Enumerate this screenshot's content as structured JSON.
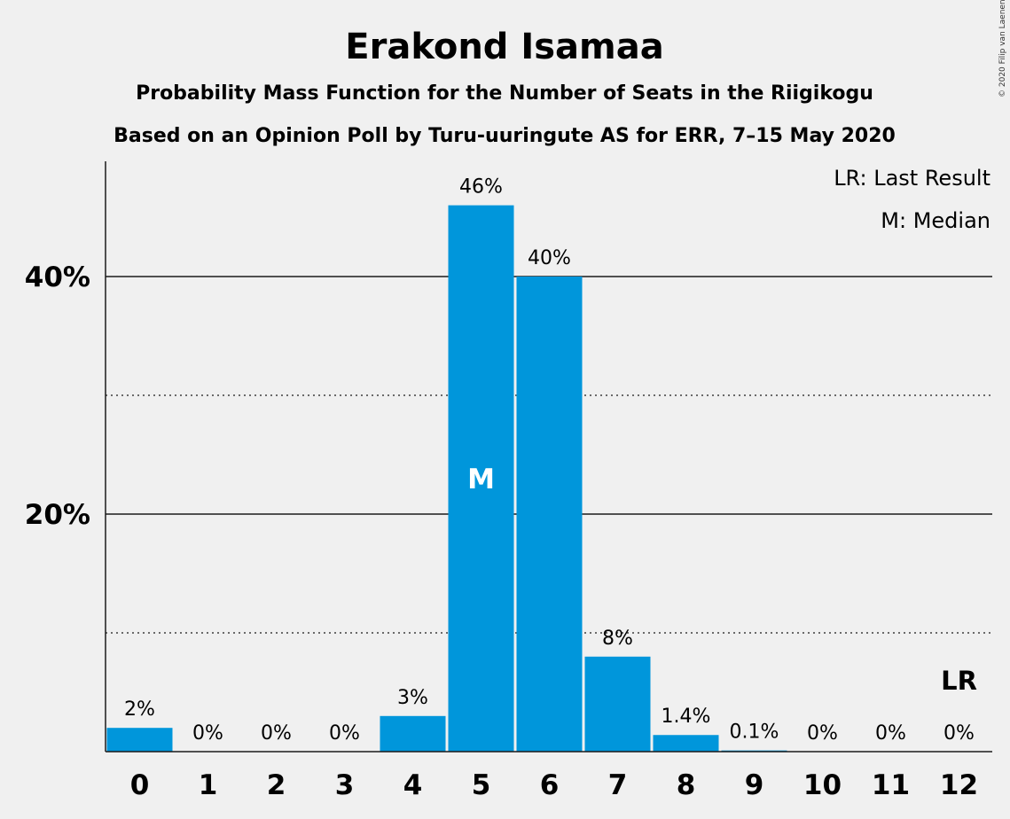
{
  "title": "Erakond Isamaa",
  "subtitle1": "Probability Mass Function for the Number of Seats in the Riigikogu",
  "subtitle2": "Based on an Opinion Poll by Turu-uuringute AS for ERR, 7–15 May 2020",
  "copyright": "© 2020 Filip van Laenen",
  "legend": {
    "last_result": "LR: Last Result",
    "median": "M: Median"
  },
  "colors": {
    "bar": "#0096db",
    "background": "#f0f0f0",
    "text": "#1a1a1a"
  },
  "chart_data": {
    "type": "bar",
    "categories": [
      "0",
      "1",
      "2",
      "3",
      "4",
      "5",
      "6",
      "7",
      "8",
      "9",
      "10",
      "11",
      "12"
    ],
    "values": [
      2,
      0,
      0,
      0,
      3,
      46,
      40,
      8,
      1.4,
      0.1,
      0,
      0,
      0
    ],
    "data_labels": [
      "2%",
      "0%",
      "0%",
      "0%",
      "3%",
      "46%",
      "40%",
      "8%",
      "1.4%",
      "0.1%",
      "0%",
      "0%",
      "0%"
    ],
    "ylim": [
      0,
      50
    ],
    "y_major_ticks": [
      20,
      40
    ],
    "y_major_tick_labels": [
      "20%",
      "40%"
    ],
    "y_minor_gridlines": [
      10,
      30
    ],
    "grid": true,
    "median_index": 5,
    "median_marker": "M",
    "last_result_index": 12,
    "last_result_marker": "LR",
    "legend_position": "top-right"
  }
}
